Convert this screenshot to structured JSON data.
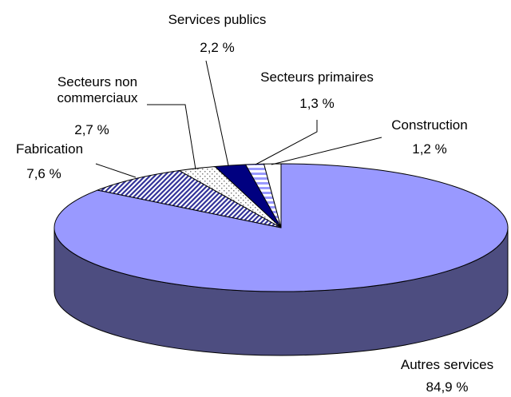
{
  "chart_data": {
    "type": "pie",
    "categories": [
      "Autres services",
      "Fabrication",
      "Secteurs non commerciaux",
      "Services publics",
      "Secteurs primaires",
      "Construction"
    ],
    "values": [
      84.9,
      7.6,
      2.7,
      2.2,
      1.3,
      1.2
    ],
    "value_labels": [
      "84,9 %",
      "7,6 %",
      "2,7 %",
      "2,2 %",
      "1,3 %",
      "1,2 %"
    ],
    "colors": [
      "#9999ff",
      "#333399",
      "#808080",
      "#000080",
      "#9999ff",
      "#ffffff"
    ]
  }
}
